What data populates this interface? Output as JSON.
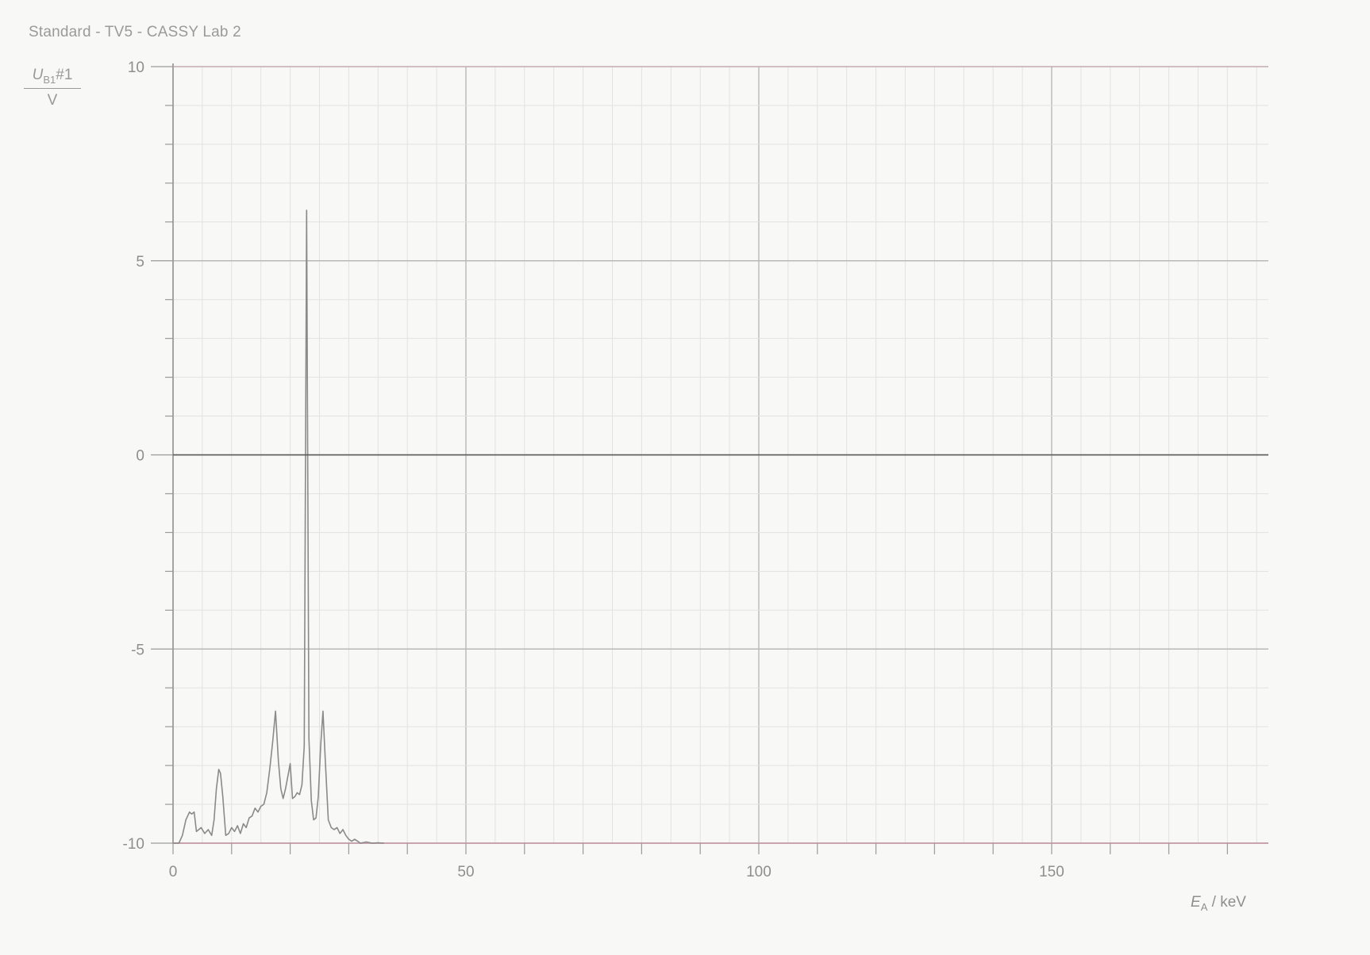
{
  "page_title": "Standard - TV5 - CASSY Lab 2",
  "colors": {
    "background": "#f8f8f6",
    "grid_minor": "#e2e2e2",
    "grid_major": "#b9b9b9",
    "axis": "#9a9a9a",
    "trace": "#8a8a8a",
    "baseline_tint": "#c9a3b0",
    "zero_line": "#555555"
  },
  "chart_data": {
    "type": "line",
    "title": "Standard - TV5 - CASSY Lab 2",
    "ylabel": {
      "symbol": "U",
      "subscript": "B1",
      "suffix": "#1",
      "unit": "V"
    },
    "xlabel": {
      "symbol": "E",
      "subscript": "A",
      "unit": "keV"
    },
    "xlim": [
      0,
      187
    ],
    "ylim": [
      -10,
      10
    ],
    "x_tick_labels": [
      "0",
      "50",
      "100",
      "150"
    ],
    "x_ticks": [
      0,
      50,
      100,
      150
    ],
    "y_tick_labels": [
      "10",
      "5",
      "0",
      "-5",
      "-10"
    ],
    "y_ticks": [
      10,
      5,
      0,
      -5,
      -10
    ],
    "grid": true,
    "series": [
      {
        "x": [
          0,
          1.0,
          1.6,
          2.2,
          2.8,
          3.2,
          3.6,
          4.0,
          4.4,
          4.8,
          5.4,
          6.0,
          6.6,
          7.0,
          7.4,
          7.8,
          8.1,
          8.5,
          9.0,
          9.5,
          10.0,
          10.5,
          11.0,
          11.5,
          12.0,
          12.5,
          13.0,
          13.5,
          14.0,
          14.5,
          15.0,
          15.5,
          16.0,
          16.5,
          17.0,
          17.5,
          18.0,
          18.4,
          18.8,
          19.2,
          19.7,
          20.0,
          20.4,
          20.8,
          21.2,
          21.6,
          22.0,
          22.4,
          22.8,
          23.2,
          23.6,
          24.0,
          24.4,
          24.8,
          25.2,
          25.6,
          26.0,
          26.5,
          27.0,
          27.5,
          28.0,
          28.5,
          29.0,
          29.5,
          30.0,
          30.5,
          31.0,
          31.5,
          32.0,
          33.0,
          34.0,
          35.0,
          36.0
        ],
        "y": [
          -10,
          -10,
          -9.8,
          -9.4,
          -9.2,
          -9.25,
          -9.2,
          -9.7,
          -9.65,
          -9.6,
          -9.75,
          -9.65,
          -9.8,
          -9.4,
          -8.6,
          -8.1,
          -8.2,
          -8.8,
          -9.8,
          -9.75,
          -9.6,
          -9.7,
          -9.55,
          -9.75,
          -9.5,
          -9.6,
          -9.35,
          -9.3,
          -9.1,
          -9.2,
          -9.05,
          -9.0,
          -8.7,
          -8.1,
          -7.4,
          -6.6,
          -7.9,
          -8.6,
          -8.85,
          -8.6,
          -8.2,
          -7.95,
          -8.85,
          -8.8,
          -8.7,
          -8.75,
          -8.5,
          -7.5,
          6.3,
          -7.3,
          -8.9,
          -9.4,
          -9.35,
          -8.8,
          -7.5,
          -6.6,
          -7.9,
          -9.4,
          -9.6,
          -9.65,
          -9.6,
          -9.75,
          -9.65,
          -9.8,
          -9.9,
          -9.95,
          -9.9,
          -9.95,
          -10,
          -9.97,
          -10,
          -9.99,
          -10
        ]
      },
      {
        "x": [
          0,
          187
        ],
        "y": [
          0,
          0
        ]
      }
    ]
  }
}
